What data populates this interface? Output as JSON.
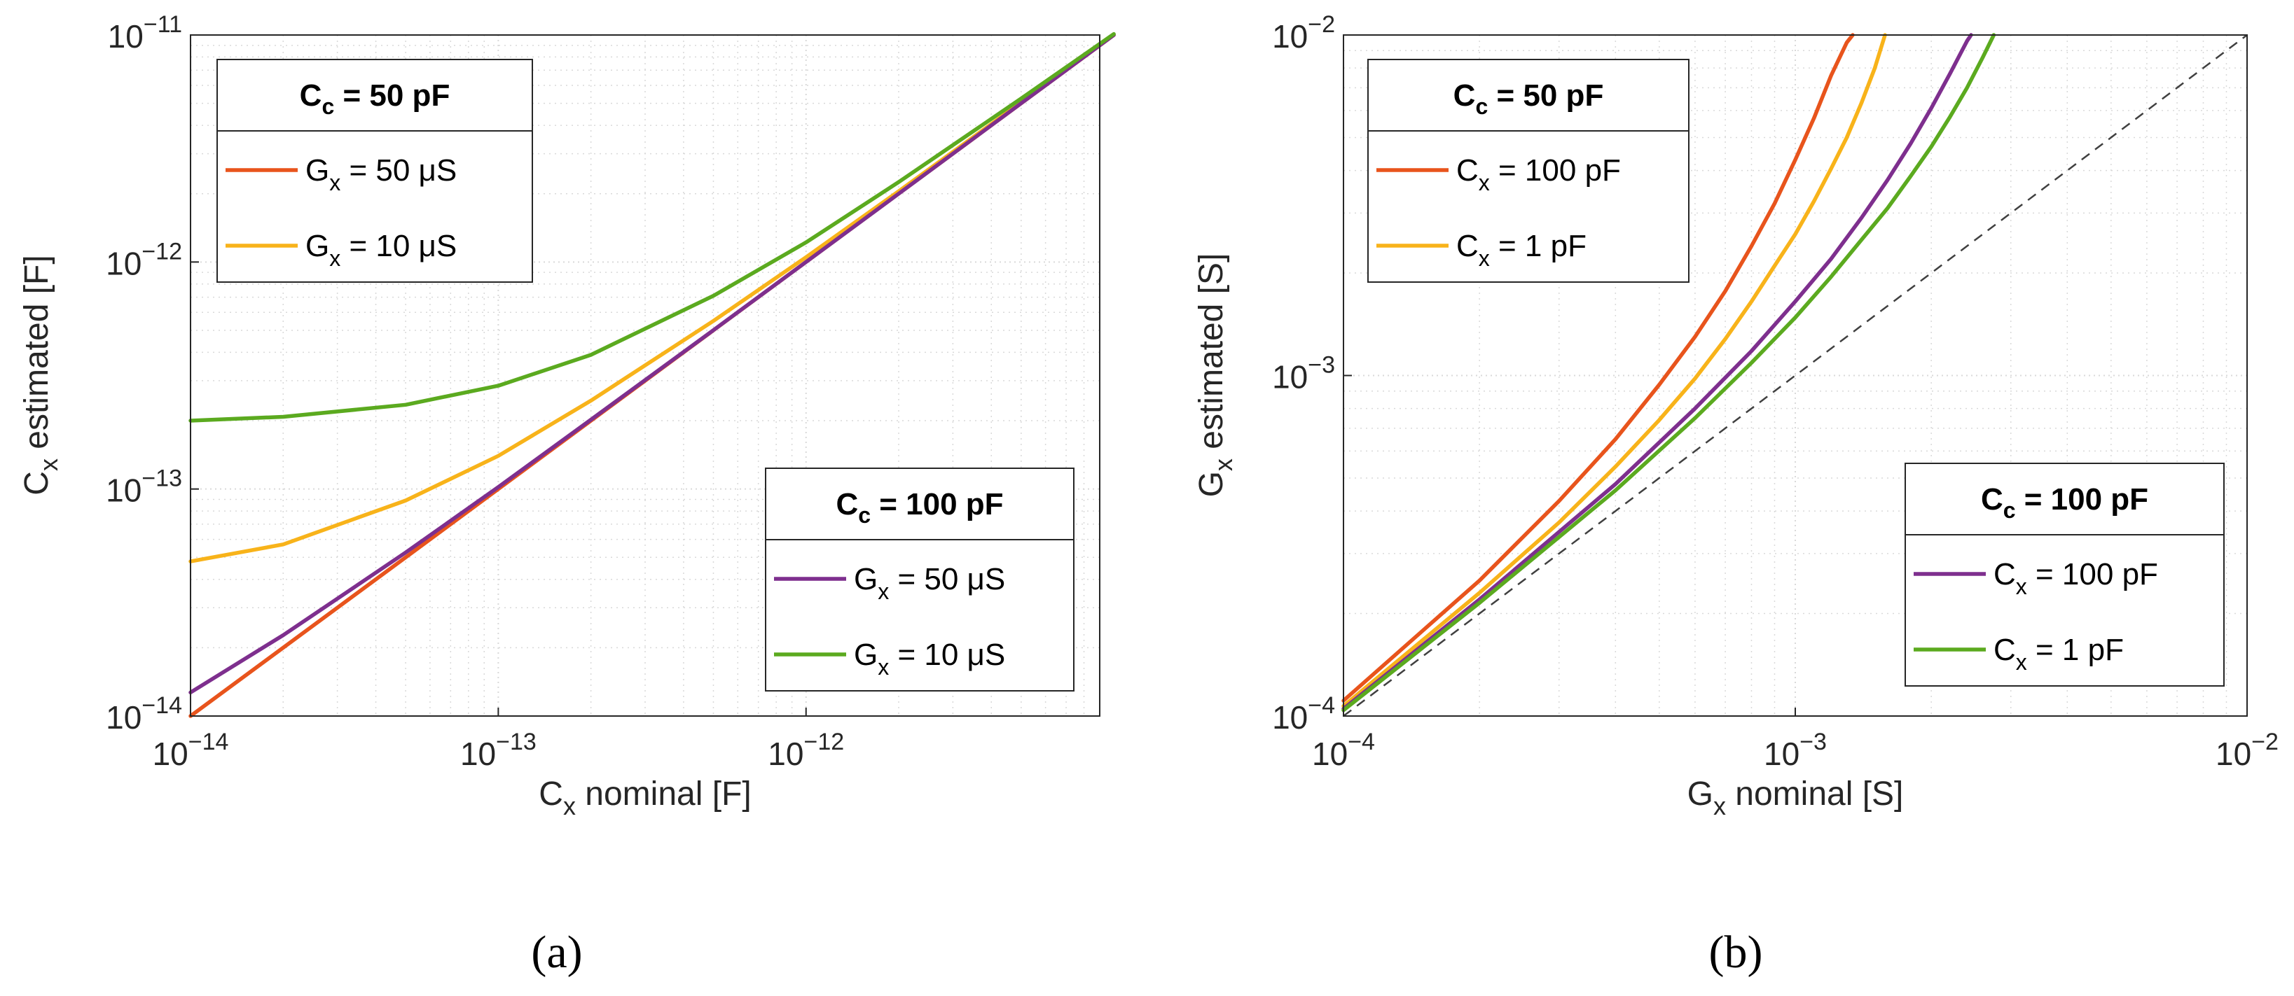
{
  "colors": {
    "orange": "#E8541C",
    "yellow": "#F8B31A",
    "purple": "#7E2F8E",
    "green": "#5BAA1F",
    "grid": "#d9d9d9",
    "axis": "#262626",
    "dashed": "#404040"
  },
  "chart_data": [
    {
      "type": "line",
      "panel": "a",
      "panel_label": "(a)",
      "x_scale": "log",
      "y_scale": "log",
      "xlim": [
        1e-14,
        9e-12
      ],
      "ylim": [
        1e-14,
        1e-11
      ],
      "x_ticks": [
        {
          "value": 1e-14,
          "base": "10",
          "exp": "−14"
        },
        {
          "value": 1e-13,
          "base": "10",
          "exp": "−13"
        },
        {
          "value": 1e-12,
          "base": "10",
          "exp": "−12"
        }
      ],
      "y_ticks": [
        {
          "value": 1e-14,
          "base": "10",
          "exp": "−14"
        },
        {
          "value": 1e-13,
          "base": "10",
          "exp": "−13"
        },
        {
          "value": 1e-12,
          "base": "10",
          "exp": "−12"
        },
        {
          "value": 1e-11,
          "base": "10",
          "exp": "−11"
        }
      ],
      "xlabel": {
        "main": "C",
        "sub": "x",
        "rest": " nominal [F]"
      },
      "ylabel": {
        "main": "C",
        "sub": "x",
        "rest": " estimated [F]"
      },
      "legends": [
        {
          "title_main": "C",
          "title_sub": "c",
          "title_rest": " = 50 pF",
          "position": "top-left",
          "entries": [
            {
              "color": "orange",
              "main": "G",
              "sub": "x",
              "rest": " = 50 μS"
            },
            {
              "color": "yellow",
              "main": "G",
              "sub": "x",
              "rest": " = 10 μS"
            }
          ]
        },
        {
          "title_main": "C",
          "title_sub": "c",
          "title_rest": " = 100 pF",
          "position": "bottom-right",
          "entries": [
            {
              "color": "purple",
              "main": "G",
              "sub": "x",
              "rest": " = 50 μS"
            },
            {
              "color": "green",
              "main": "G",
              "sub": "x",
              "rest": " = 10 μS"
            }
          ]
        }
      ],
      "series": [
        {
          "name": "Cc = 50 pF, Gx = 50 μS",
          "color": "orange",
          "x": [
            1e-14,
            1e-13,
            1e-12,
            1e-11
          ],
          "y": [
            1e-14,
            1e-13,
            1e-12,
            1e-11
          ]
        },
        {
          "name": "Cc = 50 pF, Gx = 10 μS",
          "color": "yellow",
          "x": [
            1e-14,
            2e-14,
            5e-14,
            1e-13,
            2e-13,
            5e-13,
            1e-12,
            2e-12,
            5e-12,
            1e-11
          ],
          "y": [
            4.8e-14,
            5.7e-14,
            8.9e-14,
            1.4e-13,
            2.45e-13,
            5.5e-13,
            1.05e-12,
            2.05e-12,
            5.05e-12,
            1.003e-11
          ]
        },
        {
          "name": "Cc = 100 pF, Gx = 50 μS",
          "color": "purple",
          "x": [
            1e-14,
            2e-14,
            5e-14,
            1e-13,
            2e-13,
            5e-13,
            1e-12,
            2e-12,
            5e-12,
            1e-11
          ],
          "y": [
            1.27e-14,
            2.27e-14,
            5.25e-14,
            1.02e-13,
            2.02e-13,
            5.01e-13,
            1e-12,
            2e-12,
            5e-12,
            1e-11
          ]
        },
        {
          "name": "Cc = 100 pF, Gx = 10 μS",
          "color": "green",
          "x": [
            1e-14,
            2e-14,
            5e-14,
            1e-13,
            2e-13,
            5e-13,
            1e-12,
            2e-12,
            5e-12,
            1e-11
          ],
          "y": [
            2e-13,
            2.08e-13,
            2.35e-13,
            2.85e-13,
            3.9e-13,
            7.1e-13,
            1.22e-12,
            2.25e-12,
            5.25e-12,
            1.01e-11
          ]
        }
      ]
    },
    {
      "type": "line",
      "panel": "b",
      "panel_label": "(b)",
      "x_scale": "log",
      "y_scale": "log",
      "xlim": [
        0.0001,
        0.01
      ],
      "ylim": [
        0.0001,
        0.01
      ],
      "x_ticks": [
        {
          "value": 0.0001,
          "base": "10",
          "exp": "−4"
        },
        {
          "value": 0.001,
          "base": "10",
          "exp": "−3"
        },
        {
          "value": 0.01,
          "base": "10",
          "exp": "−2"
        }
      ],
      "y_ticks": [
        {
          "value": 0.0001,
          "base": "10",
          "exp": "−4"
        },
        {
          "value": 0.001,
          "base": "10",
          "exp": "−3"
        },
        {
          "value": 0.01,
          "base": "10",
          "exp": "−2"
        }
      ],
      "xlabel": {
        "main": "G",
        "sub": "x",
        "rest": " nominal [S]"
      },
      "ylabel": {
        "main": "G",
        "sub": "x",
        "rest": " estimated [S]"
      },
      "legends": [
        {
          "title_main": "C",
          "title_sub": "c",
          "title_rest": " = 50 pF",
          "position": "top-left",
          "entries": [
            {
              "color": "orange",
              "main": "C",
              "sub": "x",
              "rest": " = 100 pF"
            },
            {
              "color": "yellow",
              "main": "C",
              "sub": "x",
              "rest": " = 1 pF"
            }
          ]
        },
        {
          "title_main": "C",
          "title_sub": "c",
          "title_rest": " = 100 pF",
          "position": "bottom-right",
          "entries": [
            {
              "color": "purple",
              "main": "C",
              "sub": "x",
              "rest": " = 100 pF"
            },
            {
              "color": "green",
              "main": "C",
              "sub": "x",
              "rest": " = 1 pF"
            }
          ]
        }
      ],
      "reference_line": {
        "style": "dashed",
        "x": [
          0.0001,
          0.01
        ],
        "y": [
          0.0001,
          0.01
        ]
      },
      "series": [
        {
          "name": "Cc = 50 pF, Cx = 100 pF",
          "color": "orange",
          "x": [
            0.0001,
            0.0002,
            0.0003,
            0.0004,
            0.0005,
            0.0006,
            0.0007,
            0.0008,
            0.0009,
            0.001,
            0.0011,
            0.0012,
            0.0013,
            0.00134
          ],
          "y": [
            0.000111,
            0.00025,
            0.000428,
            0.00065,
            0.00094,
            0.0013,
            0.00177,
            0.0024,
            0.0032,
            0.0043,
            0.0057,
            0.0076,
            0.0095,
            0.01
          ]
        },
        {
          "name": "Cc = 50 pF, Cx = 1 pF",
          "color": "yellow",
          "x": [
            0.0001,
            0.0002,
            0.0003,
            0.0004,
            0.0005,
            0.0006,
            0.0007,
            0.0008,
            0.0009,
            0.001,
            0.0011,
            0.0012,
            0.0013,
            0.0014,
            0.0015,
            0.00158
          ],
          "y": [
            0.000107,
            0.00023,
            0.00037,
            0.00054,
            0.00074,
            0.00098,
            0.00128,
            0.00165,
            0.0021,
            0.0026,
            0.00325,
            0.00405,
            0.005,
            0.0063,
            0.008,
            0.01
          ]
        },
        {
          "name": "Cc = 100 pF, Cx = 100 pF",
          "color": "purple",
          "x": [
            0.0001,
            0.0002,
            0.0004,
            0.0006,
            0.0008,
            0.001,
            0.0012,
            0.0014,
            0.0016,
            0.0018,
            0.002,
            0.0022,
            0.0024,
            0.00245
          ],
          "y": [
            0.000105,
            0.00022,
            0.00048,
            0.0008,
            0.00118,
            0.00165,
            0.0022,
            0.0029,
            0.00375,
            0.0048,
            0.0061,
            0.0077,
            0.0096,
            0.01
          ]
        },
        {
          "name": "Cc = 100 pF, Cx = 1 pF",
          "color": "green",
          "x": [
            0.0001,
            0.0002,
            0.0004,
            0.0006,
            0.0008,
            0.001,
            0.0012,
            0.0014,
            0.0016,
            0.0018,
            0.002,
            0.0022,
            0.0024,
            0.0026,
            0.00275
          ],
          "y": [
            0.000104,
            0.000215,
            0.00046,
            0.00075,
            0.00109,
            0.00148,
            0.00195,
            0.0025,
            0.0031,
            0.00385,
            0.0047,
            0.00575,
            0.007,
            0.0086,
            0.01
          ]
        }
      ]
    }
  ]
}
